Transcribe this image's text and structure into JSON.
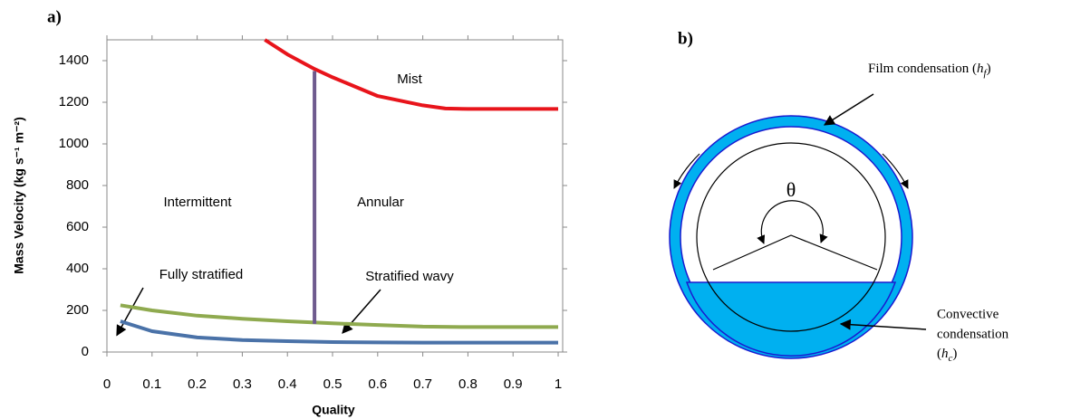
{
  "chart_data": {
    "type": "line",
    "panel_label": "a)",
    "x_label": "Quality",
    "y_label": "Mass Velocity (kg s⁻¹ m⁻²)",
    "xlim": [
      0,
      1.01
    ],
    "ylim": [
      0,
      1500
    ],
    "xticks": [
      0,
      0.1,
      0.2,
      0.3,
      0.4,
      0.5,
      0.6,
      0.7,
      0.8,
      0.9,
      1
    ],
    "yticks": [
      0,
      200,
      400,
      600,
      800,
      1000,
      1200,
      1400
    ],
    "series": [
      {
        "color": "#e8141b",
        "x": [
          0.35,
          0.4,
          0.46,
          0.5,
          0.6,
          0.7,
          0.75,
          0.8,
          0.9,
          1.0
        ],
        "values": [
          1500,
          1430,
          1360,
          1320,
          1230,
          1185,
          1170,
          1168,
          1168,
          1168
        ]
      },
      {
        "color": "#8faa4f",
        "x": [
          0.03,
          0.1,
          0.2,
          0.3,
          0.4,
          0.5,
          0.6,
          0.7,
          0.8,
          0.9,
          1.0
        ],
        "values": [
          225,
          200,
          175,
          160,
          148,
          138,
          130,
          122,
          120,
          120,
          120
        ]
      },
      {
        "color": "#4a72a8",
        "x": [
          0.03,
          0.1,
          0.2,
          0.3,
          0.4,
          0.5,
          0.6,
          0.7,
          0.8,
          0.9,
          1.0
        ],
        "values": [
          148,
          100,
          70,
          58,
          52,
          48,
          46,
          45,
          45,
          45,
          45
        ]
      },
      {
        "color": "#6e5a8e",
        "x": [
          0.46,
          0.46
        ],
        "values": [
          135,
          1350
        ]
      }
    ],
    "annotations": [
      "Mist",
      "Intermittent",
      "Annular",
      "Fully stratified",
      "Stratified wavy"
    ]
  },
  "diagram": {
    "panel_label": "b)",
    "film": {
      "text": "Film condensation (",
      "symbol": "h",
      "subscript": "f",
      "close": ")"
    },
    "convective": {
      "line1": "Convective",
      "line2": "condensation",
      "open": "(",
      "symbol": "h",
      "subscript": "c",
      "close": ")"
    },
    "angle": "θ"
  }
}
